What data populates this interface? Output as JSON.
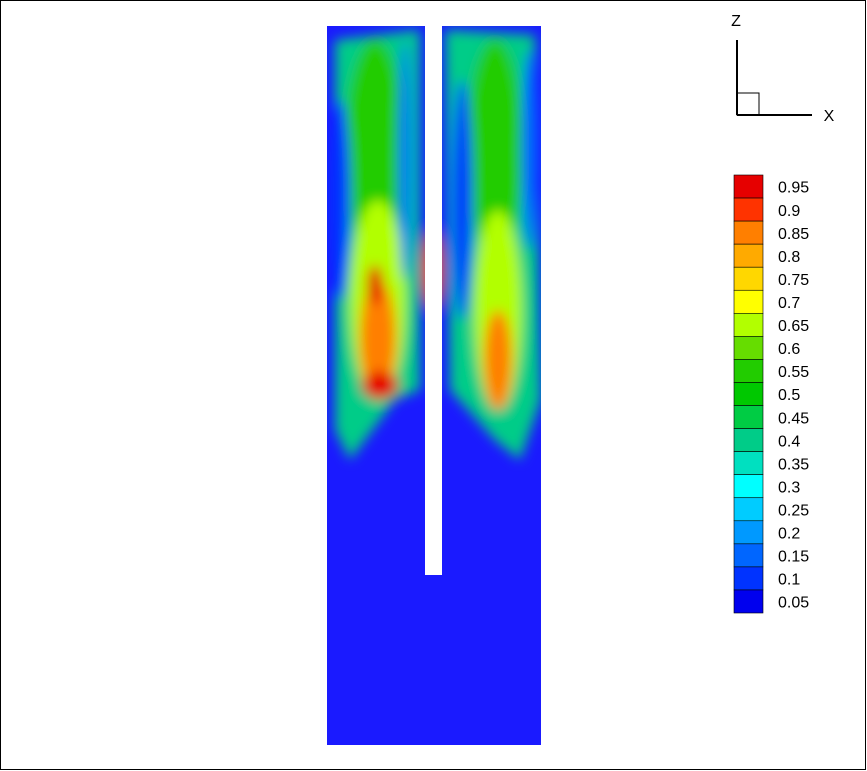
{
  "axes": {
    "z": "Z",
    "x": "X"
  },
  "legend": {
    "levels": [
      0.95,
      0.9,
      0.85,
      0.8,
      0.75,
      0.7,
      0.65,
      0.6,
      0.55,
      0.5,
      0.45,
      0.4,
      0.35,
      0.3,
      0.25,
      0.2,
      0.15,
      0.1,
      0.05
    ],
    "colors": [
      "#e60000",
      "#ff3300",
      "#ff7f00",
      "#ffaa00",
      "#ffd700",
      "#ffff00",
      "#b2ff00",
      "#66dd00",
      "#22cc00",
      "#00c800",
      "#00cc44",
      "#00cc88",
      "#00e0c0",
      "#00ffff",
      "#00ccff",
      "#0099ff",
      "#0066ff",
      "#0033ff",
      "#0000ee"
    ]
  }
}
